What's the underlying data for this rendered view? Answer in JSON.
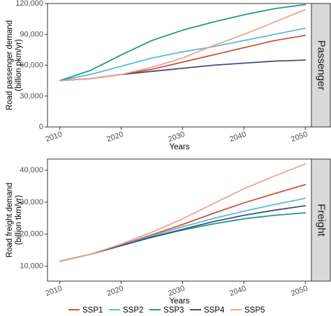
{
  "chart_data": {
    "type": "line",
    "x_axis_title": "Years",
    "legend_position": "bottom",
    "series_styles": [
      {
        "name": "SSP1",
        "color": "#d0503e"
      },
      {
        "name": "SSP2",
        "color": "#5bbccf"
      },
      {
        "name": "SSP3",
        "color": "#1e9c82"
      },
      {
        "name": "SSP4",
        "color": "#434d7d"
      },
      {
        "name": "SSP5",
        "color": "#eea58c"
      }
    ],
    "panels": [
      {
        "facet_label": "Passenger",
        "ylabel_line1": "Road passenger demand",
        "ylabel_line2": "(billion pkm/yr)",
        "ylim": [
          0,
          120000
        ],
        "y_ticks": [
          0,
          30000,
          60000,
          90000,
          120000
        ],
        "y_tick_labels": [
          "0",
          "30,000",
          "60,000",
          "90,000",
          "120,000"
        ],
        "xlim": [
          2008,
          2051
        ],
        "x_ticks": [
          2010,
          2020,
          2030,
          2040,
          2050
        ],
        "x_tick_labels": [
          "2010",
          "2020",
          "2030",
          "2040",
          "2050"
        ],
        "x": [
          2010,
          2015,
          2020,
          2025,
          2030,
          2035,
          2040,
          2045,
          2050
        ],
        "series": [
          {
            "name": "SSP1",
            "values": [
              45000,
              47000,
              51000,
              56000,
              63000,
              70000,
              77000,
              84000,
              89000
            ]
          },
          {
            "name": "SSP2",
            "values": [
              45000,
              51000,
              59000,
              67000,
              73000,
              78000,
              84000,
              90000,
              96000
            ]
          },
          {
            "name": "SSP3",
            "values": [
              45000,
              55000,
              70000,
              84000,
              94000,
              102000,
              109000,
              115000,
              119000
            ]
          },
          {
            "name": "SSP4",
            "values": [
              45000,
              47000,
              51000,
              54000,
              57000,
              60000,
              62000,
              64000,
              65000
            ]
          },
          {
            "name": "SSP5",
            "values": [
              45000,
              47000,
              51000,
              58000,
              67000,
              79000,
              90000,
              102000,
              114000
            ]
          }
        ]
      },
      {
        "facet_label": "Freight",
        "ylabel_line1": "Road freight demand",
        "ylabel_line2": "(billion tkm/yr)",
        "ylim": [
          5300,
          43500
        ],
        "y_ticks": [
          10000,
          20000,
          30000,
          40000
        ],
        "y_tick_labels": [
          "10,000",
          "20,000",
          "30,000",
          "40,000"
        ],
        "xlim": [
          2008,
          2051
        ],
        "x_ticks": [
          2010,
          2020,
          2030,
          2040,
          2050
        ],
        "x_tick_labels": [
          "2010",
          "2020",
          "2030",
          "2040",
          "2050"
        ],
        "x": [
          2010,
          2015,
          2020,
          2025,
          2030,
          2035,
          2040,
          2045,
          2050
        ],
        "series": [
          {
            "name": "SSP1",
            "values": [
              11500,
              13700,
              16600,
              19800,
              23000,
              26500,
              29800,
              32700,
              35500
            ]
          },
          {
            "name": "SSP2",
            "values": [
              11500,
              13700,
              16500,
              19500,
              22300,
              24900,
              27200,
              29300,
              31200
            ]
          },
          {
            "name": "SSP3",
            "values": [
              11500,
              13700,
              16400,
              19000,
              21300,
              23200,
              24800,
              25900,
              26700
            ]
          },
          {
            "name": "SSP4",
            "values": [
              11500,
              13700,
              16400,
              19100,
              21500,
              23900,
              25900,
              27500,
              28900
            ]
          },
          {
            "name": "SSP5",
            "values": [
              11500,
              13700,
              16900,
              20600,
              24800,
              29500,
              34200,
              38200,
              42000
            ]
          }
        ]
      }
    ]
  }
}
